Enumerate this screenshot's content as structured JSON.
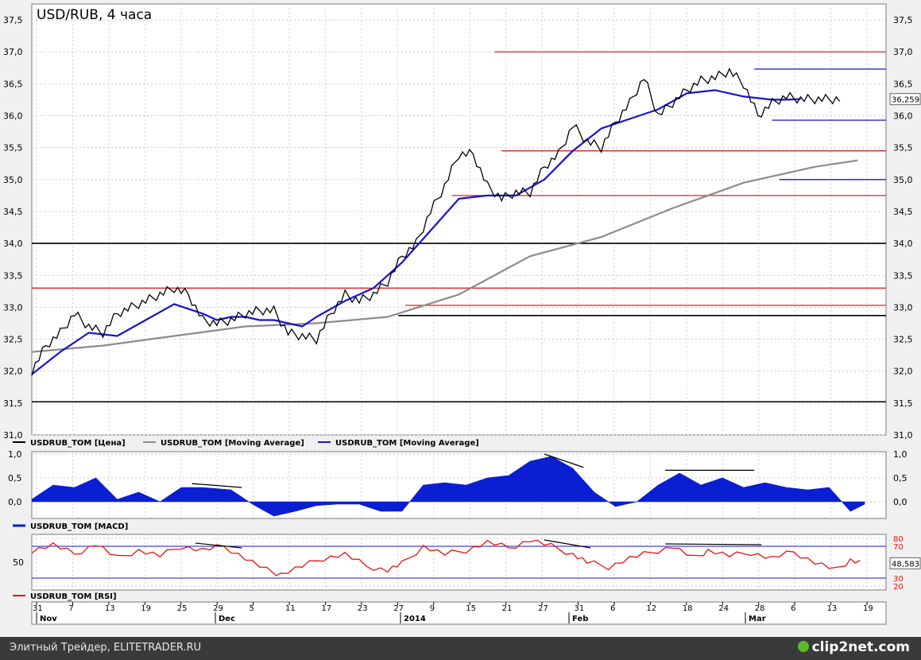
{
  "title": "USD/RUB, 4 часа",
  "last_price_label": "36,259",
  "rsi_value_label": "48,583",
  "watermark": {
    "left": "Элитный Трейдер, ELITETRADER.RU",
    "right": "clip2net.com"
  },
  "legends": {
    "price": [
      "USDRUB_TOM [Цена]",
      "USDRUB_TOM [Moving Average]",
      "USDRUB_TOM [Moving Average]"
    ],
    "macd": "USDRUB_TOM [MACD]",
    "rsi": "USDRUB_TOM [RSI]"
  },
  "colors": {
    "price": "#000000",
    "ma_long": "#8c8c8c",
    "ma_short": "#1414d2",
    "level_red": "#e02020",
    "level_black": "#000000",
    "level_blue": "#1414d2",
    "macd": "#0a1ed2",
    "rsi": "#e81010"
  },
  "chart_data": [
    {
      "type": "line",
      "title": "USD/RUB, 4 часа",
      "ylim": [
        31.0,
        37.75
      ],
      "y_ticks": [
        "31,0",
        "31,5",
        "32,0",
        "32,5",
        "33,0",
        "33,5",
        "34,0",
        "34,5",
        "35,0",
        "35,5",
        "36,0",
        "36,5",
        "37,0",
        "37,5"
      ],
      "x_ticks": [
        "31",
        "7",
        "13",
        "19",
        "25",
        "29",
        "5",
        "11",
        "17",
        "23",
        "27",
        "9",
        "15",
        "21",
        "27",
        "31",
        "6",
        "12",
        "18",
        "24",
        "28",
        "6",
        "13",
        "19"
      ],
      "month_labels": [
        "Nov",
        "Dec",
        "2014",
        "Feb",
        "Mar"
      ],
      "series": [
        {
          "name": "USDRUB_TOM [Цена]",
          "x": [
            0,
            4,
            8,
            12,
            16,
            20,
            24,
            28,
            32,
            36,
            40,
            44,
            48,
            52,
            56,
            60,
            64,
            68,
            72,
            76,
            80,
            84,
            88,
            92,
            96,
            100,
            104,
            108,
            112,
            116,
            120,
            124,
            128,
            132,
            136,
            140,
            144,
            148,
            152,
            156,
            160,
            164,
            168,
            172,
            176,
            180,
            184,
            188,
            192,
            196,
            200,
            204,
            208,
            212,
            216,
            220,
            224,
            228,
            232,
            236,
            240
          ],
          "y": [
            32.0,
            32.4,
            32.6,
            32.9,
            32.7,
            32.6,
            32.9,
            33.0,
            33.1,
            33.2,
            33.3,
            33.2,
            32.8,
            32.75,
            32.8,
            32.9,
            32.95,
            32.95,
            32.6,
            32.55,
            32.5,
            32.9,
            33.2,
            33.1,
            33.2,
            33.4,
            33.8,
            34.0,
            34.5,
            34.9,
            35.4,
            35.4,
            34.9,
            34.7,
            34.8,
            34.8,
            35.2,
            35.4,
            35.85,
            35.6,
            35.5,
            35.9,
            36.2,
            36.6,
            36.0,
            36.2,
            36.4,
            36.55,
            36.6,
            36.7,
            36.5,
            36.0,
            36.2,
            36.3,
            36.26,
            36.26,
            36.26,
            36.26,
            36.26,
            36.26,
            36.26
          ]
        },
        {
          "name": "USDRUB_TOM [Moving Average]",
          "x": [
            0,
            20,
            40,
            60,
            80,
            100,
            120,
            140,
            160,
            180,
            200,
            220,
            232
          ],
          "y": [
            32.3,
            32.4,
            32.55,
            32.7,
            32.75,
            32.85,
            33.2,
            33.8,
            34.1,
            34.55,
            34.95,
            35.2,
            35.3
          ]
        },
        {
          "name": "USDRUB_TOM [Moving Average]",
          "x": [
            0,
            8,
            16,
            24,
            32,
            40,
            48,
            52,
            56,
            60,
            64,
            68,
            72,
            76,
            80,
            88,
            96,
            104,
            112,
            120,
            128,
            136,
            144,
            152,
            160,
            168,
            176,
            184,
            192,
            200,
            208,
            212,
            216
          ],
          "y": [
            31.95,
            32.3,
            32.6,
            32.55,
            32.8,
            33.05,
            32.9,
            32.8,
            32.85,
            32.85,
            32.8,
            32.8,
            32.75,
            32.7,
            32.85,
            33.1,
            33.3,
            33.7,
            34.2,
            34.7,
            34.75,
            34.75,
            35.0,
            35.45,
            35.8,
            35.95,
            36.1,
            36.35,
            36.4,
            36.3,
            36.25,
            36.25,
            36.26
          ]
        }
      ],
      "levels": [
        {
          "y": 37.0,
          "x0": 130,
          "x1": 240,
          "color": "red"
        },
        {
          "y": 35.45,
          "x0": 132,
          "x1": 240,
          "color": "red"
        },
        {
          "y": 34.75,
          "x0": 118,
          "x1": 240,
          "color": "red"
        },
        {
          "y": 33.3,
          "x0": 0,
          "x1": 240,
          "color": "red"
        },
        {
          "y": 33.03,
          "x0": 105,
          "x1": 240,
          "color": "red"
        },
        {
          "y": 34.0,
          "x0": 0,
          "x1": 240,
          "color": "black"
        },
        {
          "y": 32.87,
          "x0": 103,
          "x1": 240,
          "color": "black"
        },
        {
          "y": 31.52,
          "x0": 0,
          "x1": 240,
          "color": "black"
        },
        {
          "y": 36.73,
          "x0": 203,
          "x1": 240,
          "color": "blue"
        },
        {
          "y": 35.93,
          "x0": 208,
          "x1": 240,
          "color": "blue"
        },
        {
          "y": 35.0,
          "x0": 210,
          "x1": 240,
          "color": "blue"
        }
      ]
    },
    {
      "type": "area",
      "title": "USDRUB_TOM [MACD]",
      "ylim": [
        -0.35,
        1.05
      ],
      "y_ticks": [
        "0,0",
        "0,5",
        "1,0"
      ],
      "series": [
        {
          "name": "USDRUB_TOM [MACD]",
          "x": [
            0,
            6,
            12,
            18,
            24,
            30,
            36,
            42,
            48,
            56,
            62,
            68,
            74,
            80,
            86,
            92,
            98,
            104,
            110,
            116,
            122,
            128,
            134,
            140,
            146,
            152,
            158,
            164,
            170,
            176,
            182,
            188,
            194,
            200,
            206,
            212,
            218,
            224,
            230,
            234
          ],
          "y": [
            0.05,
            0.35,
            0.3,
            0.5,
            0.05,
            0.2,
            0.0,
            0.3,
            0.3,
            0.25,
            -0.05,
            -0.3,
            -0.2,
            -0.08,
            -0.05,
            -0.05,
            -0.2,
            -0.2,
            0.35,
            0.4,
            0.35,
            0.5,
            0.55,
            0.85,
            0.95,
            0.7,
            0.2,
            -0.1,
            0.0,
            0.35,
            0.6,
            0.35,
            0.5,
            0.3,
            0.4,
            0.3,
            0.25,
            0.3,
            -0.2,
            -0.05
          ]
        }
      ],
      "divergence_lines": [
        {
          "x0": 45,
          "y0": 0.38,
          "x1": 59,
          "y1": 0.3
        },
        {
          "x0": 144,
          "y0": 1.0,
          "x1": 155,
          "y1": 0.72
        },
        {
          "x0": 178,
          "y0": 0.66,
          "x1": 203,
          "y1": 0.66
        }
      ]
    },
    {
      "type": "line",
      "title": "USDRUB_TOM [RSI]",
      "ylim": [
        20,
        80
      ],
      "y_ticks": [
        "20",
        "30",
        "50",
        "70",
        "80"
      ],
      "series": [
        {
          "name": "USDRUB_TOM [RSI]",
          "x": [
            0,
            6,
            12,
            18,
            24,
            30,
            36,
            42,
            48,
            54,
            60,
            66,
            70,
            76,
            82,
            88,
            94,
            100,
            104,
            110,
            116,
            122,
            128,
            134,
            140,
            146,
            152,
            156,
            162,
            168,
            174,
            180,
            186,
            190,
            196,
            202,
            208,
            214,
            220,
            226,
            230,
            234
          ],
          "y": [
            65,
            72,
            60,
            73,
            55,
            65,
            58,
            70,
            65,
            70,
            55,
            40,
            35,
            45,
            55,
            60,
            45,
            40,
            48,
            70,
            60,
            65,
            75,
            68,
            78,
            70,
            60,
            50,
            44,
            55,
            62,
            70,
            55,
            65,
            58,
            62,
            55,
            63,
            50,
            40,
            53,
            48.6
          ]
        }
      ],
      "divergence_lines": [
        {
          "x0": 46,
          "y0": 74,
          "x1": 59,
          "y1": 68
        },
        {
          "x0": 144,
          "y0": 78,
          "x1": 157,
          "y1": 68
        },
        {
          "x0": 178,
          "y0": 73,
          "x1": 205,
          "y1": 72
        }
      ]
    }
  ]
}
